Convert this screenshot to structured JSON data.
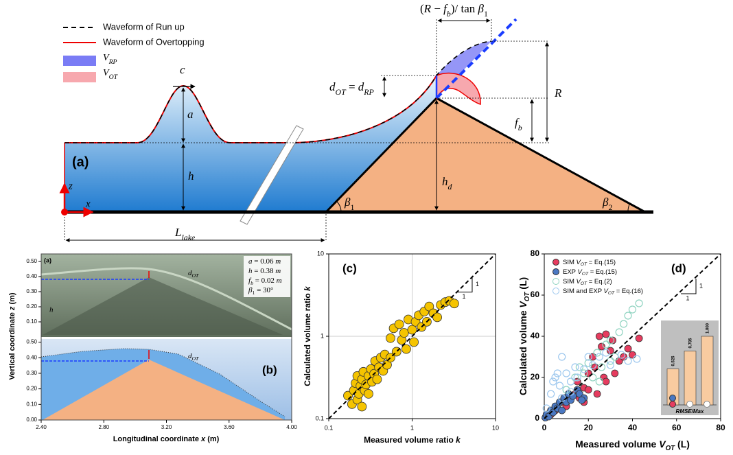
{
  "panel_a": {
    "label": "(a)",
    "legend": [
      "Waveform of Run up",
      "Waveform of Overtopping",
      [
        {
          "t": "V",
          "i": true
        },
        {
          "t": "RP",
          "i": true,
          "sub": true
        }
      ],
      [
        {
          "t": "V",
          "i": true
        },
        {
          "t": "OT",
          "i": true,
          "sub": true
        }
      ]
    ],
    "celerity": "c",
    "amplitude": "a",
    "depth": "h",
    "z_axis": "z",
    "x_axis": "x",
    "lake_length": [
      {
        "t": "L",
        "i": true
      },
      {
        "t": "lake",
        "i": true,
        "sub": true
      }
    ],
    "beta1": [
      {
        "t": "β",
        "i": true
      },
      {
        "t": "1",
        "sub": true
      }
    ],
    "beta2": [
      {
        "t": "β",
        "i": true
      },
      {
        "t": "2",
        "sub": true
      }
    ],
    "dam_height": [
      {
        "t": "h",
        "i": true
      },
      {
        "t": "d",
        "i": true,
        "sub": true
      }
    ],
    "freeboard": [
      {
        "t": "f",
        "i": true
      },
      {
        "t": "b",
        "i": true,
        "sub": true
      }
    ],
    "runup": "R",
    "overtopping_depth": [
      {
        "t": "d",
        "i": true
      },
      {
        "t": "OT",
        "i": true,
        "sub": true
      },
      {
        "t": " = "
      },
      {
        "t": "d",
        "i": true
      },
      {
        "t": "RP",
        "i": true,
        "sub": true
      }
    ],
    "runup_length": [
      {
        "t": "("
      },
      {
        "t": "R",
        "i": true
      },
      {
        "t": " − "
      },
      {
        "t": "f",
        "i": true
      },
      {
        "t": "b",
        "i": true,
        "sub": true
      },
      {
        "t": ")/ tan "
      },
      {
        "t": "β",
        "i": true
      },
      {
        "t": "1",
        "sub": true
      }
    ]
  },
  "panel_b": {
    "photo_label": "(a)",
    "label": "(b)",
    "params": [
      [
        {
          "t": "a",
          "i": true
        },
        {
          "t": " = 0.06 "
        },
        {
          "t": "m",
          "i": true
        }
      ],
      [
        {
          "t": "h",
          "i": true
        },
        {
          "t": " = 0.38 "
        },
        {
          "t": "m",
          "i": true
        }
      ],
      [
        {
          "t": "f",
          "i": true
        },
        {
          "t": "b",
          "i": true,
          "sub": true
        },
        {
          "t": " = 0.02 "
        },
        {
          "t": "m",
          "i": true
        }
      ],
      [
        {
          "t": "β",
          "i": true
        },
        {
          "t": "1",
          "sub": true
        },
        {
          "t": " = 30°"
        }
      ]
    ],
    "photo_d": [
      {
        "t": "d",
        "i": true
      },
      {
        "t": "OT",
        "i": true,
        "sub": true
      }
    ],
    "photo_h": "h",
    "sim_d": [
      {
        "t": "d",
        "i": true
      },
      {
        "t": "OT",
        "i": true,
        "sub": true
      }
    ],
    "y_label": [
      {
        "t": "Vertical coordinate "
      },
      {
        "t": "z",
        "i": true
      },
      {
        "t": " (m)"
      }
    ],
    "x_label": [
      {
        "t": "Longitudinal coordinate "
      },
      {
        "t": "x",
        "i": true
      },
      {
        "t": " (m)"
      }
    ],
    "xlim": [
      2.4,
      4.0
    ],
    "xticks": [
      {
        "value": 2.4,
        "label": "2.40"
      },
      {
        "value": 2.8,
        "label": "2.80"
      },
      {
        "value": 3.2,
        "label": "3.20"
      },
      {
        "value": 3.6,
        "label": "3.60"
      },
      {
        "value": 4.0,
        "label": "4.00"
      }
    ],
    "ylim_top": [
      0,
      0.55
    ],
    "yticks_top": [
      {
        "value": 0.1,
        "label": "0.10"
      },
      {
        "value": 0.2,
        "label": "0.20"
      },
      {
        "value": 0.3,
        "label": "0.30"
      },
      {
        "value": 0.4,
        "label": "0.40"
      },
      {
        "value": 0.5,
        "label": "0.50"
      }
    ],
    "ylim_bottom": [
      0,
      0.52
    ],
    "yticks_bottom": [
      {
        "value": 0,
        "label": "0.00"
      },
      {
        "value": 0.1,
        "label": "0.10"
      },
      {
        "value": 0.2,
        "label": "0.20"
      },
      {
        "value": 0.3,
        "label": "0.30"
      },
      {
        "value": 0.4,
        "label": "0.40"
      },
      {
        "value": 0.5,
        "label": "0.50"
      }
    ]
  },
  "chart_data": [
    {
      "type": "scatter",
      "label": "(c)",
      "log": true,
      "grid": true,
      "x_label": [
        {
          "t": "Measured volume ratio "
        },
        {
          "t": "k",
          "i": true
        }
      ],
      "y_label": [
        {
          "t": "Calculated volume ratio "
        },
        {
          "t": "k",
          "i": true
        }
      ],
      "xlim": [
        0.1,
        10
      ],
      "ylim": [
        0.1,
        10
      ],
      "xticks": [
        0.1,
        1,
        10
      ],
      "yticks": [
        0.1,
        1,
        10
      ],
      "slope_labels": [
        "1",
        "1"
      ],
      "series": [
        {
          "color": "#f5c400",
          "filled": true,
          "x": [
            0.17,
            0.19,
            0.2,
            0.21,
            0.22,
            0.22,
            0.23,
            0.24,
            0.25,
            0.25,
            0.26,
            0.27,
            0.28,
            0.3,
            0.3,
            0.32,
            0.33,
            0.35,
            0.36,
            0.38,
            0.4,
            0.42,
            0.45,
            0.47,
            0.5,
            0.55,
            0.55,
            0.6,
            0.65,
            0.7,
            0.75,
            0.8,
            0.85,
            0.9,
            1.0,
            1.05,
            1.1,
            1.2,
            1.3,
            1.4,
            1.5,
            1.6,
            1.8,
            2.0,
            2.2,
            2.5,
            2.8,
            3.2
          ],
          "values": [
            0.19,
            0.15,
            0.22,
            0.27,
            0.17,
            0.33,
            0.2,
            0.25,
            0.14,
            0.3,
            0.37,
            0.22,
            0.26,
            0.33,
            0.2,
            0.4,
            0.28,
            0.35,
            0.5,
            0.3,
            0.42,
            0.55,
            0.38,
            0.6,
            0.45,
            0.95,
            0.55,
            1.25,
            0.65,
            1.4,
            0.9,
            1.1,
            0.7,
            1.6,
            1.2,
            0.85,
            1.5,
            1.8,
            1.3,
            2.0,
            1.5,
            2.3,
            1.9,
            1.7,
            2.4,
            2.6,
            2.7,
            2.5
          ]
        }
      ]
    },
    {
      "type": "scatter",
      "label": "(d)",
      "log": false,
      "grid": false,
      "legend": "upper left",
      "x_label": [
        {
          "t": "Measured volume "
        },
        {
          "t": "V",
          "i": true
        },
        {
          "t": "OT",
          "i": true,
          "sub": true
        },
        {
          "t": " (L)"
        }
      ],
      "y_label": [
        {
          "t": "Calculated volume "
        },
        {
          "t": "V",
          "i": true
        },
        {
          "t": "OT",
          "i": true,
          "sub": true
        },
        {
          "t": " (L)"
        }
      ],
      "xlim": [
        0,
        80
      ],
      "ylim": [
        0,
        80
      ],
      "xticks": [
        0,
        20,
        40,
        60,
        80
      ],
      "yticks": [
        0,
        20,
        40,
        60,
        80
      ],
      "slope_labels": [
        "1",
        "1"
      ],
      "series": [
        {
          "name": [
            {
              "t": "SIM "
            },
            {
              "t": "V",
              "i": true
            },
            {
              "t": "OT",
              "i": true,
              "sub": true
            },
            {
              "t": " = Eq.(15)"
            }
          ],
          "color": "#e63c5f",
          "filled": true,
          "x": [
            3,
            5,
            8,
            10,
            12,
            14,
            15,
            16,
            18,
            20,
            20,
            22,
            23,
            25,
            26,
            27,
            28,
            30,
            31,
            32,
            34,
            36,
            38,
            40,
            43,
            18,
            24,
            28
          ],
          "values": [
            2,
            4,
            8,
            6,
            10,
            12,
            18,
            10,
            15,
            14,
            22,
            30,
            25,
            40,
            35,
            20,
            41,
            33,
            38,
            22,
            28,
            30,
            34,
            31,
            39,
            8,
            12,
            18
          ]
        },
        {
          "name": [
            {
              "t": "EXP "
            },
            {
              "t": "V",
              "i": true
            },
            {
              "t": "OT",
              "i": true,
              "sub": true
            },
            {
              "t": " = Eq.(15)"
            }
          ],
          "color": "#4a78c2",
          "filled": true,
          "x": [
            0.5,
            1,
            2,
            3,
            4,
            5,
            6,
            7,
            8,
            9,
            10,
            11,
            12,
            13,
            15,
            16,
            18,
            17
          ],
          "values": [
            0.5,
            2,
            1,
            4,
            3,
            6,
            5,
            8,
            4,
            10,
            8,
            12,
            9,
            11,
            14,
            12,
            10,
            9
          ]
        },
        {
          "name": [
            {
              "t": "SIM "
            },
            {
              "t": "V",
              "i": true
            },
            {
              "t": "OT",
              "i": true,
              "sub": true
            },
            {
              "t": " = Eq.(2)"
            }
          ],
          "color": "#8fd3c0",
          "filled": false,
          "x": [
            10,
            14,
            16,
            18,
            20,
            22,
            24,
            26,
            28,
            30,
            32,
            34,
            36,
            38,
            40,
            43,
            30,
            25
          ],
          "values": [
            14,
            20,
            25,
            22,
            27,
            20,
            32,
            25,
            36,
            38,
            30,
            42,
            46,
            50,
            53,
            56,
            28,
            18
          ]
        },
        {
          "name": [
            {
              "t": "SIM and EXP "
            },
            {
              "t": "V",
              "i": true
            },
            {
              "t": "OT",
              "i": true,
              "sub": true
            },
            {
              "t": " = Eq.(16)"
            }
          ],
          "color": "#9cc7ee",
          "filled": false,
          "x": [
            1,
            3,
            4,
            5,
            6,
            7,
            8,
            10,
            12,
            14,
            15,
            18,
            20,
            22,
            25,
            28,
            30,
            35,
            38,
            42,
            8,
            12
          ],
          "values": [
            5,
            12,
            18,
            20,
            22,
            16,
            30,
            22,
            18,
            25,
            20,
            24,
            30,
            26,
            30,
            32,
            26,
            31,
            28,
            29,
            10,
            13
          ]
        }
      ],
      "inset": {
        "type": "bar",
        "label": "RMSE/Max",
        "color": "#f8cba0",
        "values": [
          0.525,
          0.785,
          1.0
        ],
        "value_labels": [
          "0.525",
          "0.785",
          "1.000"
        ]
      }
    }
  ]
}
